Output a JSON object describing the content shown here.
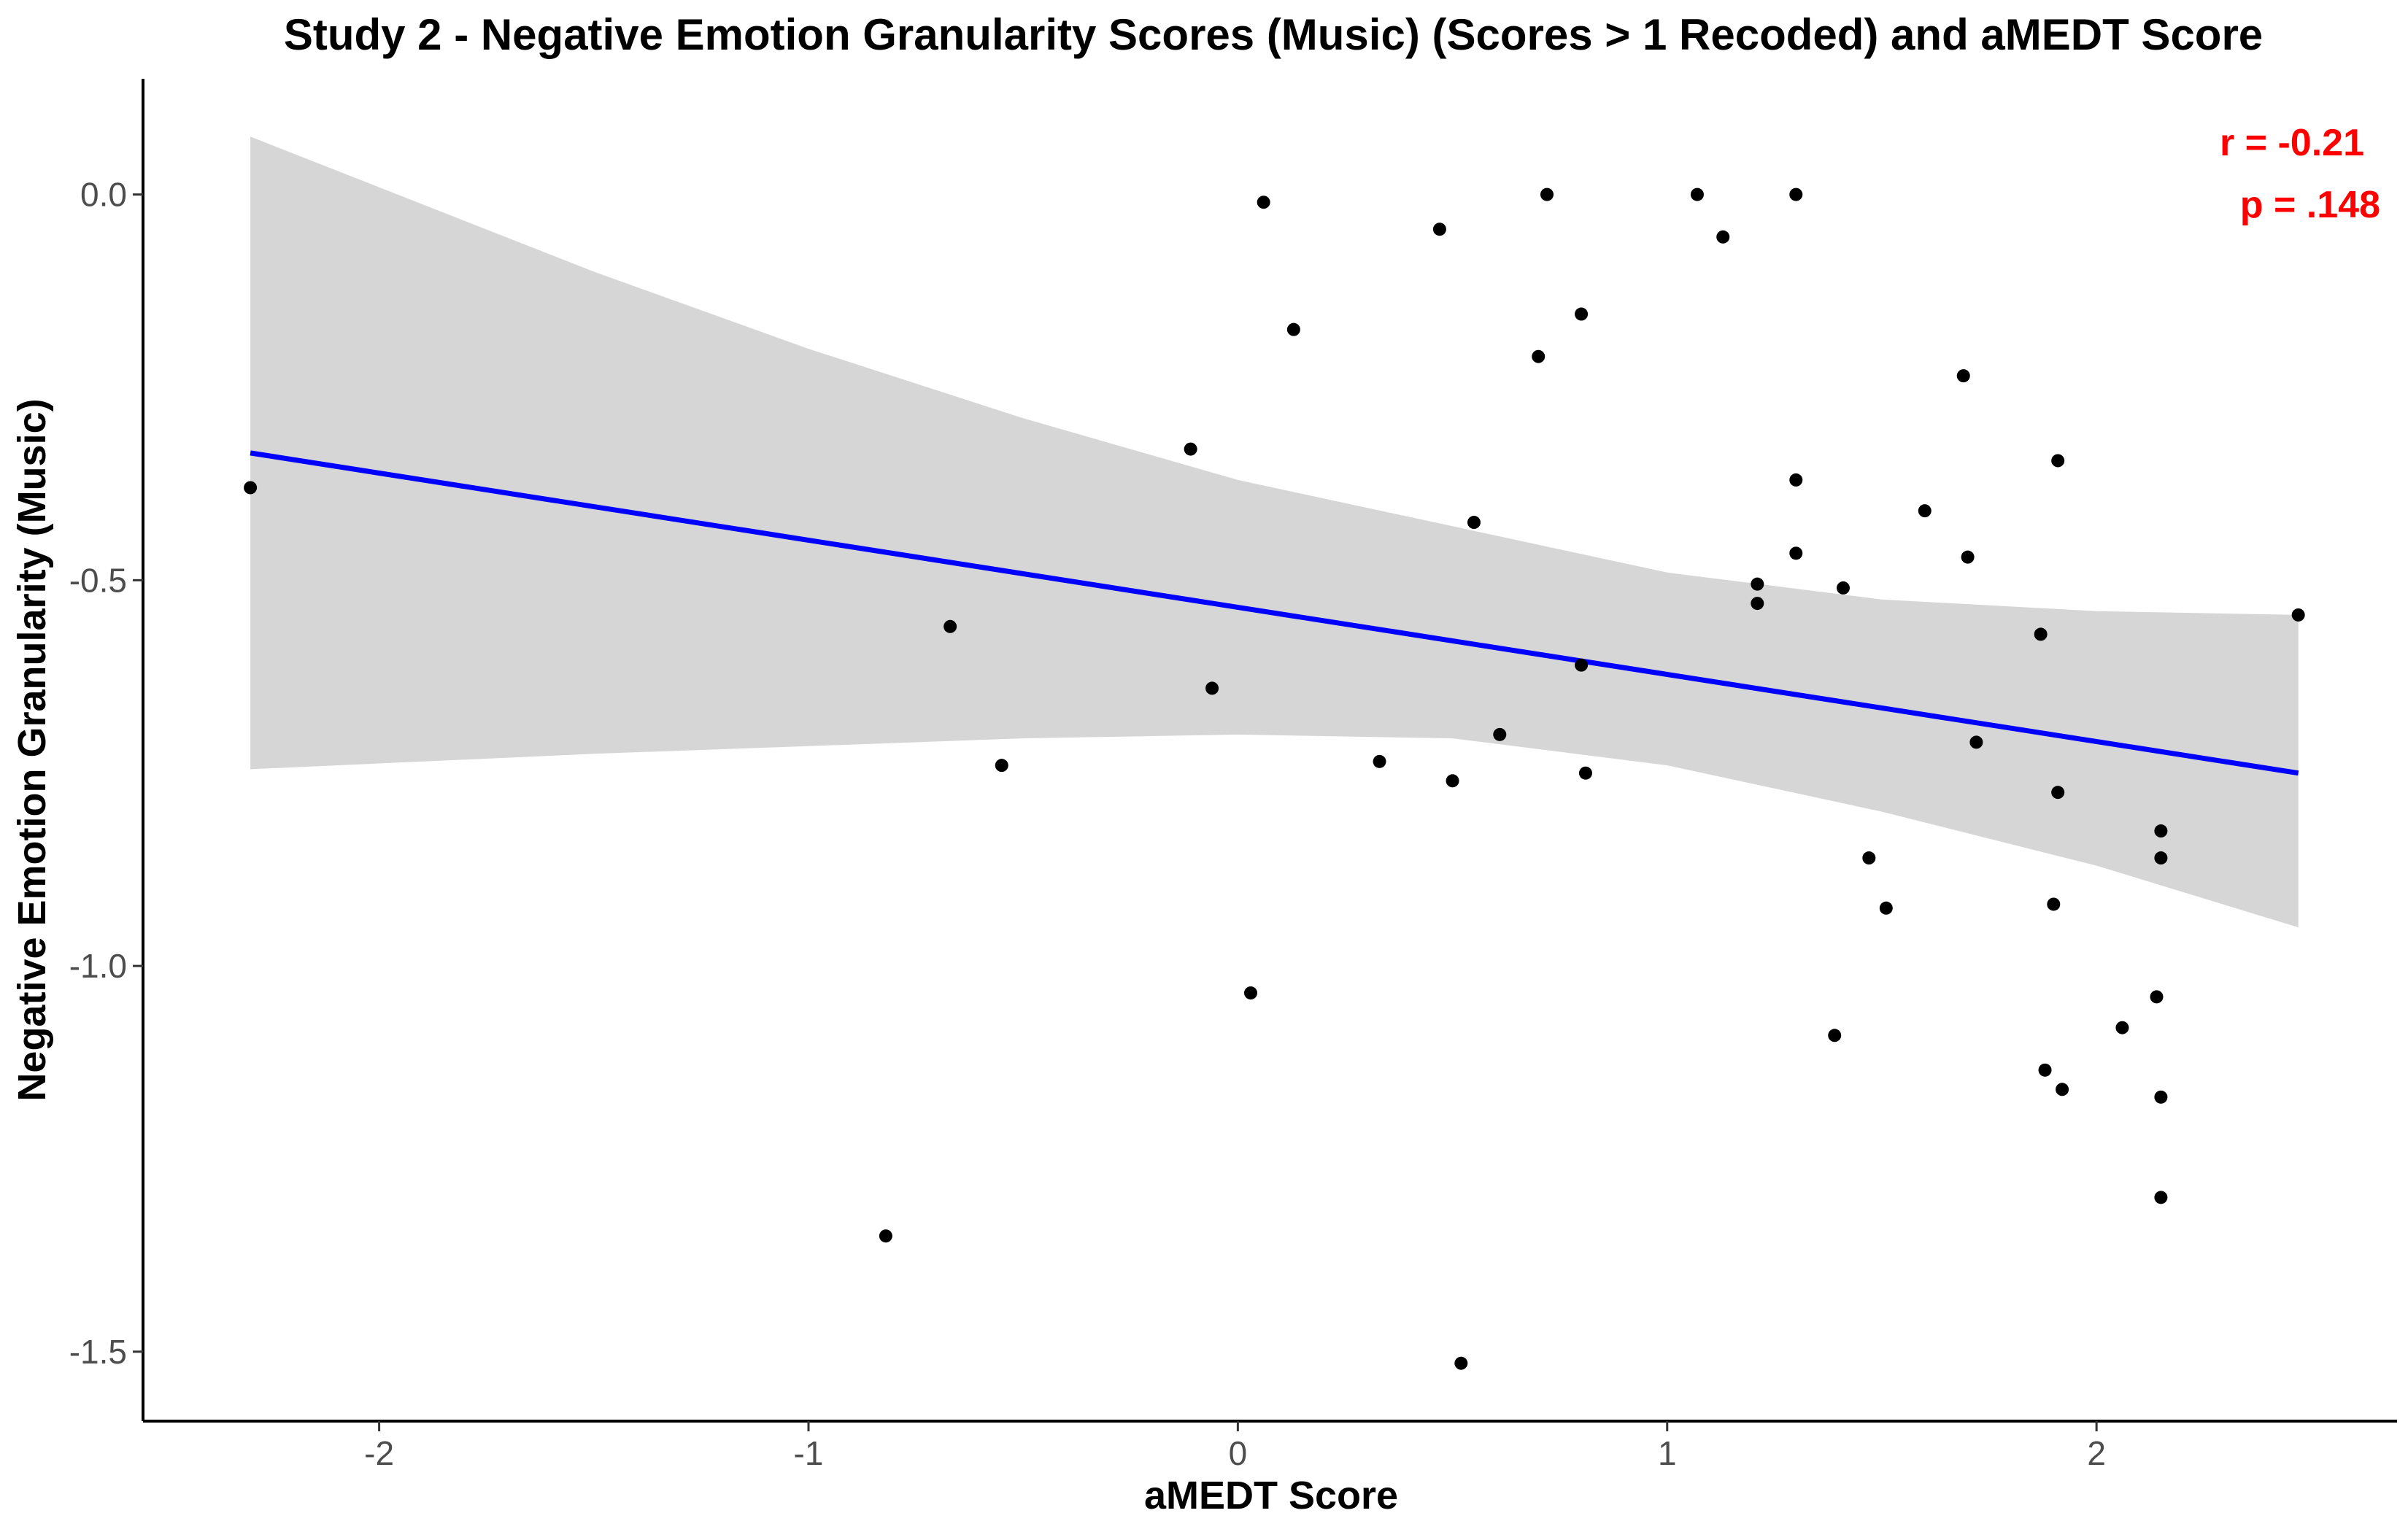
{
  "chart_data": {
    "type": "scatter",
    "title": "Study 2 - Negative Emotion Granularity Scores (Music) (Scores > 1 Recoded) and aMEDT Score",
    "xlabel": "aMEDT Score",
    "ylabel": "Negative Emotion Granularity (Music)",
    "xlim": [
      -2.55,
      2.7
    ],
    "ylim": [
      -1.59,
      0.15
    ],
    "xticks": [
      -2,
      -1,
      0,
      1,
      2
    ],
    "xtick_labels": [
      "-2",
      "-1",
      "0",
      "1",
      "2"
    ],
    "yticks": [
      0.0,
      -0.5,
      -1.0,
      -1.5
    ],
    "ytick_labels": [
      "0.0",
      "-0.5",
      "-1.0",
      "-1.5"
    ],
    "grid": false,
    "annotations": [
      "r = -0.21",
      "p = .148"
    ],
    "point_color": "#000000",
    "fit_color": "#0000ff",
    "band_color": "#d6d6d6",
    "annotation_color": "#ff0000",
    "points": [
      {
        "x": -2.3,
        "y": -0.38
      },
      {
        "x": -0.82,
        "y": -1.35
      },
      {
        "x": -0.67,
        "y": -0.56
      },
      {
        "x": -0.55,
        "y": -0.74
      },
      {
        "x": -0.11,
        "y": -0.33
      },
      {
        "x": -0.06,
        "y": -0.64
      },
      {
        "x": 0.03,
        "y": -1.035
      },
      {
        "x": 0.06,
        "y": -0.01
      },
      {
        "x": 0.13,
        "y": -0.175
      },
      {
        "x": 0.33,
        "y": -0.735
      },
      {
        "x": 0.47,
        "y": -0.045
      },
      {
        "x": 0.5,
        "y": -0.76
      },
      {
        "x": 0.52,
        "y": -1.515
      },
      {
        "x": 0.55,
        "y": -0.425
      },
      {
        "x": 0.61,
        "y": -0.7
      },
      {
        "x": 0.7,
        "y": -0.21
      },
      {
        "x": 0.72,
        "y": 0.0
      },
      {
        "x": 0.8,
        "y": -0.155
      },
      {
        "x": 0.8,
        "y": -0.61
      },
      {
        "x": 0.81,
        "y": -0.75
      },
      {
        "x": 1.07,
        "y": 0.0
      },
      {
        "x": 1.13,
        "y": -0.055
      },
      {
        "x": 1.21,
        "y": -0.505
      },
      {
        "x": 1.21,
        "y": -0.53
      },
      {
        "x": 1.3,
        "y": 0.0
      },
      {
        "x": 1.3,
        "y": -0.37
      },
      {
        "x": 1.3,
        "y": -0.465
      },
      {
        "x": 1.39,
        "y": -1.09
      },
      {
        "x": 1.41,
        "y": -0.51
      },
      {
        "x": 1.47,
        "y": -0.86
      },
      {
        "x": 1.51,
        "y": -0.925
      },
      {
        "x": 1.6,
        "y": -0.41
      },
      {
        "x": 1.69,
        "y": -0.235
      },
      {
        "x": 1.7,
        "y": -0.47
      },
      {
        "x": 1.72,
        "y": -0.71
      },
      {
        "x": 1.87,
        "y": -0.57
      },
      {
        "x": 1.88,
        "y": -1.135
      },
      {
        "x": 1.9,
        "y": -0.92
      },
      {
        "x": 1.91,
        "y": -0.345
      },
      {
        "x": 1.91,
        "y": -0.775
      },
      {
        "x": 1.92,
        "y": -1.16
      },
      {
        "x": 2.06,
        "y": -1.08
      },
      {
        "x": 2.14,
        "y": -1.04
      },
      {
        "x": 2.15,
        "y": -0.825
      },
      {
        "x": 2.15,
        "y": -0.86
      },
      {
        "x": 2.15,
        "y": -1.17
      },
      {
        "x": 2.15,
        "y": -1.3
      },
      {
        "x": 2.47,
        "y": -0.545
      }
    ],
    "fit_line": {
      "x": [
        -2.3,
        2.47
      ],
      "y": [
        -0.335,
        -0.75
      ]
    },
    "confidence_band": {
      "x": [
        -2.3,
        -1.5,
        -1.0,
        -0.5,
        0.0,
        0.5,
        1.0,
        1.5,
        2.0,
        2.47
      ],
      "upper": [
        0.075,
        -0.1,
        -0.2,
        -0.29,
        -0.37,
        -0.43,
        -0.49,
        -0.525,
        -0.54,
        -0.545
      ],
      "lower": [
        -0.745,
        -0.725,
        -0.715,
        -0.705,
        -0.7,
        -0.705,
        -0.74,
        -0.8,
        -0.87,
        -0.95
      ]
    }
  }
}
